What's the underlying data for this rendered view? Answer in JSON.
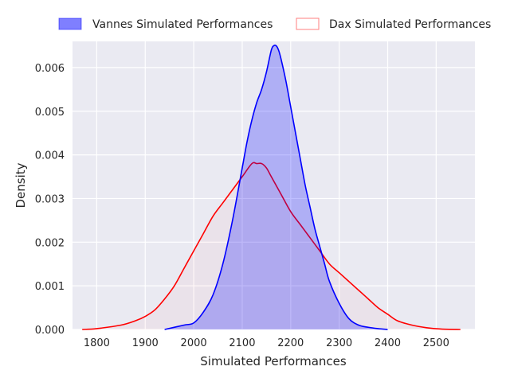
{
  "chart_data": {
    "type": "area",
    "title": "",
    "xlabel": "Simulated Performances",
    "ylabel": "Density",
    "xlim": [
      1750,
      2580
    ],
    "ylim": [
      0,
      0.0066
    ],
    "xticks": [
      1800,
      1900,
      2000,
      2100,
      2200,
      2300,
      2400,
      2500
    ],
    "yticks": [
      0.0,
      0.001,
      0.002,
      0.003,
      0.004,
      0.005,
      0.006
    ],
    "ytick_labels": [
      "0.000",
      "0.001",
      "0.002",
      "0.003",
      "0.004",
      "0.005",
      "0.006"
    ],
    "grid": true,
    "legend_position": "top",
    "series": [
      {
        "name": "Vannes Simulated Performances",
        "line_color": "#0000ff",
        "fill_color": "#0000ff",
        "fill_opacity": 0.25,
        "x": [
          1940,
          1980,
          2000,
          2020,
          2040,
          2060,
          2080,
          2100,
          2110,
          2120,
          2130,
          2140,
          2150,
          2160,
          2165,
          2170,
          2175,
          2180,
          2190,
          2200,
          2210,
          2220,
          2230,
          2240,
          2250,
          2260,
          2270,
          2280,
          2300,
          2320,
          2340,
          2360,
          2380,
          2400
        ],
        "y": [
          0.0,
          0.0001,
          0.00015,
          0.0004,
          0.0008,
          0.0015,
          0.0025,
          0.0037,
          0.0043,
          0.0048,
          0.0052,
          0.0055,
          0.0059,
          0.0064,
          0.0065,
          0.0065,
          0.0064,
          0.0062,
          0.0057,
          0.0051,
          0.0045,
          0.0039,
          0.0033,
          0.0028,
          0.0023,
          0.0019,
          0.0015,
          0.0011,
          0.0006,
          0.00025,
          0.0001,
          5e-05,
          2e-05,
          0.0
        ]
      },
      {
        "name": "Dax Simulated Performances",
        "line_color": "#ff0000",
        "fill_color": "#ff0000",
        "fill_opacity": 0.03,
        "x": [
          1770,
          1800,
          1850,
          1880,
          1900,
          1920,
          1940,
          1960,
          1980,
          2000,
          2020,
          2040,
          2060,
          2080,
          2100,
          2120,
          2130,
          2140,
          2150,
          2160,
          2180,
          2200,
          2220,
          2240,
          2260,
          2280,
          2300,
          2320,
          2340,
          2360,
          2380,
          2400,
          2420,
          2450,
          2480,
          2510,
          2550
        ],
        "y": [
          0.0,
          2e-05,
          0.0001,
          0.0002,
          0.0003,
          0.00045,
          0.0007,
          0.001,
          0.0014,
          0.0018,
          0.0022,
          0.0026,
          0.0029,
          0.0032,
          0.0035,
          0.0038,
          0.0038,
          0.0038,
          0.0037,
          0.0035,
          0.0031,
          0.0027,
          0.0024,
          0.0021,
          0.0018,
          0.0015,
          0.0013,
          0.0011,
          0.0009,
          0.0007,
          0.0005,
          0.00035,
          0.0002,
          0.0001,
          4e-05,
          1e-05,
          0.0
        ]
      }
    ]
  }
}
